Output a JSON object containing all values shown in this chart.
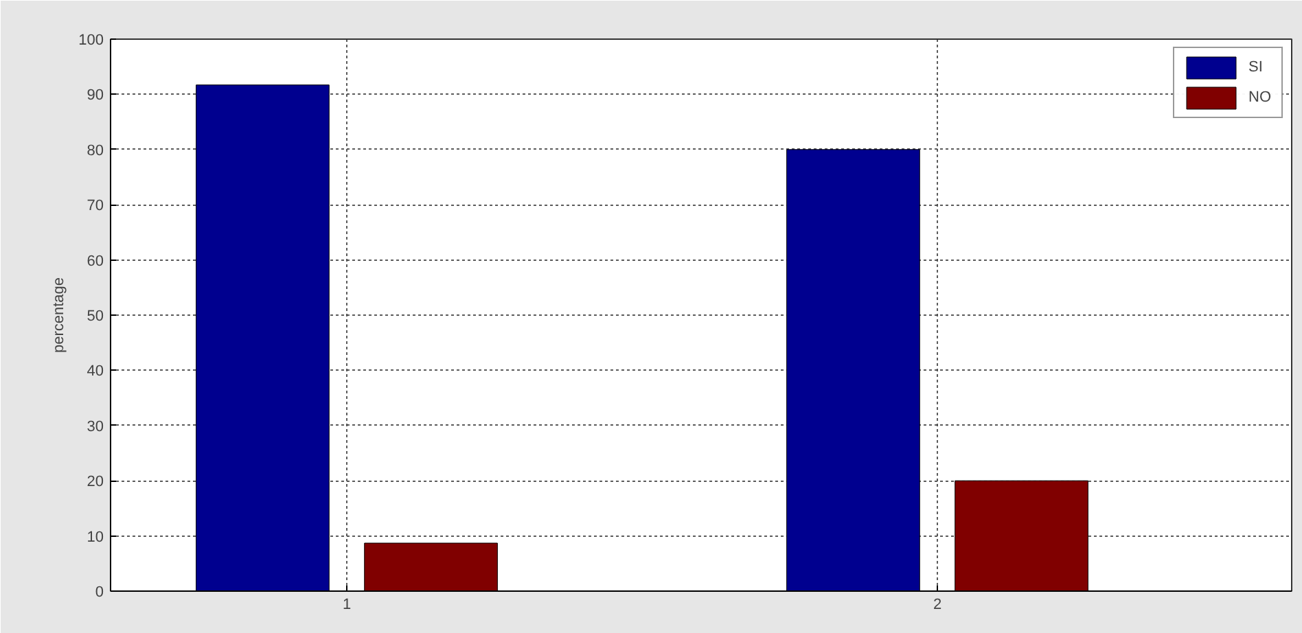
{
  "chart_data": {
    "type": "bar",
    "ylabel": "percentage",
    "categories": [
      "1",
      "2"
    ],
    "series": [
      {
        "name": "SI",
        "color": "#00008f",
        "values": [
          91.7,
          80
        ]
      },
      {
        "name": "NO",
        "color": "#800000",
        "values": [
          8.7,
          20
        ]
      }
    ],
    "ylim": [
      0,
      100
    ],
    "yticks": [
      0,
      10,
      20,
      30,
      40,
      50,
      60,
      70,
      80,
      90,
      100
    ],
    "grid": true,
    "legend": "top right"
  }
}
